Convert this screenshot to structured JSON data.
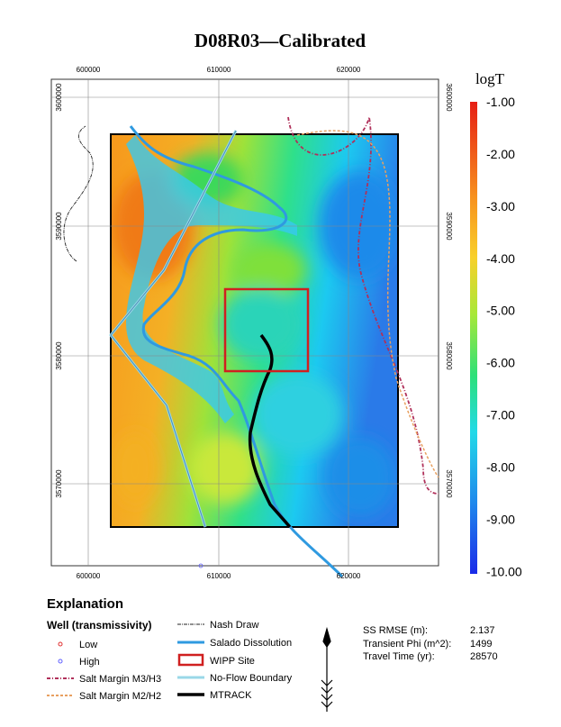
{
  "title": "D08R03—Calibrated",
  "map": {
    "x_ticks": [
      "600000",
      "610000",
      "620000"
    ],
    "y_ticks": [
      "3600000",
      "3590000",
      "3580000",
      "3570000"
    ]
  },
  "colorbar": {
    "title": "logT",
    "ticks": [
      "-1.00",
      "-2.00",
      "-3.00",
      "-4.00",
      "-5.00",
      "-6.00",
      "-7.00",
      "-8.00",
      "-9.00",
      "-10.00"
    ]
  },
  "explanation": {
    "title": "Explanation",
    "well_heading": "Well (transmissivity)",
    "left": [
      "Low",
      "High",
      "Salt Margin M3/H3",
      "Salt Margin M2/H2"
    ],
    "right": [
      "Nash Draw",
      "Salado Dissolution",
      "WIPP Site",
      "No-Flow Boundary",
      "MTRACK"
    ]
  },
  "stats": [
    {
      "label": "SS RMSE (m):",
      "value": "2.137"
    },
    {
      "label": "Transient Phi (m^2):",
      "value": "1499"
    },
    {
      "label": "Travel Time (yr):",
      "value": "28570"
    }
  ]
}
